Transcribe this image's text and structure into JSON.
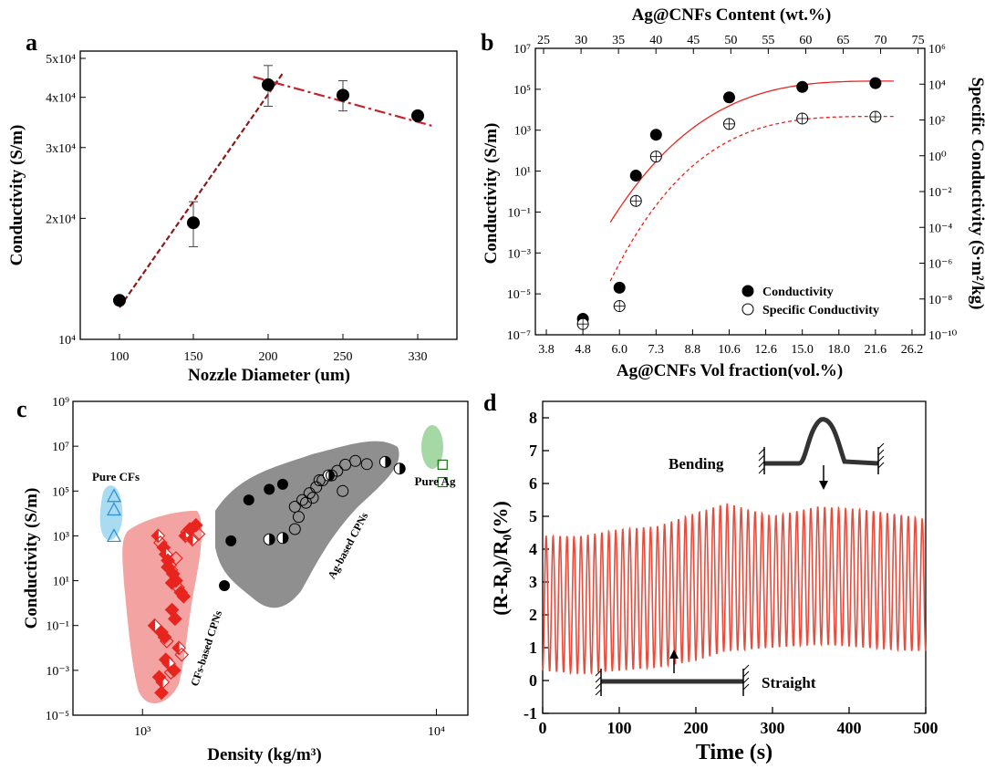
{
  "colors": {
    "red": "#e8241f",
    "darkred": "#8b1a1a",
    "dashred": "#c0272d",
    "grey": "#8f8f8f",
    "pink": "#f4a3a3",
    "blue": "#a9dbf2",
    "green": "#a6d8a6",
    "bending_line": "#e84c3d",
    "black": "#000000"
  },
  "chart_data": [
    {
      "panel": "a",
      "type": "scatter",
      "xlabel": "Nozzle Diameter (um)",
      "ylabel": "Conductivity (S/m)",
      "categories": [
        "100",
        "150",
        "200",
        "250",
        "330"
      ],
      "values": [
        12500,
        19500,
        43000,
        40500,
        36000
      ],
      "error": [
        0,
        2500,
        5000,
        3500,
        0
      ],
      "y_ticks": [
        "10⁴",
        "2x10⁴",
        "3x10⁴",
        "4x10⁴",
        "5x10⁴"
      ],
      "y_scale": "log",
      "ylim": [
        10000,
        50000
      ],
      "fit_lines": [
        {
          "style": "dashed",
          "points": [
            [
              100,
              12000
            ],
            [
              210,
              46000
            ]
          ]
        },
        {
          "style": "dash-dot",
          "points": [
            [
              190,
              45000
            ],
            [
              345,
              34000
            ]
          ]
        }
      ]
    },
    {
      "panel": "b",
      "type": "scatter",
      "xlabel": "Ag@CNFs Vol fraction(vol.%)",
      "x2label": "Ag@CNFs Content (wt.%)",
      "ylabel": "Conductivity (S/m)",
      "y2label": "Specific Conductivity (S·m²/kg)",
      "x_ticks": [
        "3.8",
        "4.8",
        "6.0",
        "7.3",
        "8.8",
        "10.6",
        "12.6",
        "15.0",
        "18.0",
        "21.6",
        "26.2"
      ],
      "x2_ticks": [
        "25",
        "30",
        "35",
        "40",
        "45",
        "50",
        "55",
        "60",
        "65",
        "70",
        "75"
      ],
      "y_ticks": [
        "10⁻⁷",
        "10⁻⁵",
        "10⁻³",
        "10⁻¹",
        "10¹",
        "10³",
        "10⁵",
        "10⁷"
      ],
      "y2_ticks": [
        "10⁻¹⁰",
        "10⁻⁸",
        "10⁻⁶",
        "10⁻⁴",
        "10⁻²",
        "10⁰",
        "10²",
        "10⁴",
        "10⁶"
      ],
      "y_scale": "log",
      "ylim": [
        1e-07,
        10000000.0
      ],
      "y2lim": [
        1e-10,
        1000000.0
      ],
      "legend_position": "bottom-right",
      "series": [
        {
          "name": "Conductivity",
          "marker": "filled-circle",
          "x": [
            4.8,
            6.0,
            6.5,
            7.3,
            10.6,
            15.0,
            21.6
          ],
          "y": [
            6e-07,
            2e-05,
            6,
            600,
            40000,
            130000,
            200000
          ]
        },
        {
          "name": "Specific Conductivity",
          "marker": "open-circle-cross",
          "x": [
            4.8,
            6.0,
            6.5,
            7.3,
            10.6,
            15.0,
            21.6
          ],
          "y": [
            4e-10,
            4e-09,
            0.003,
            0.9,
            60,
            120,
            150
          ]
        }
      ]
    },
    {
      "panel": "c",
      "type": "scatter",
      "xlabel": "Density (kg/m³)",
      "ylabel": "Conductivity (S/m)",
      "x_ticks": [
        "10³",
        "10⁴"
      ],
      "y_ticks": [
        "10⁻⁵",
        "10⁻³",
        "10⁻¹",
        "10¹",
        "10³",
        "10⁵",
        "10⁷",
        "10⁹"
      ],
      "x_scale": "log",
      "y_scale": "log",
      "regions": [
        {
          "label": "Pure CFs",
          "color": "blue"
        },
        {
          "label": "CFs-based CPNs",
          "color": "pink"
        },
        {
          "label": "Ag-based CPNs",
          "color": "grey"
        },
        {
          "label": "Pure Ag",
          "color": "green"
        }
      ],
      "series": [
        {
          "name": "Pure CFs",
          "marker": "open-triangle",
          "x": [
            800,
            800,
            800
          ],
          "y": [
            60000,
            15000,
            1000
          ]
        },
        {
          "name": "CFs-based CPNs",
          "marker": "red-diamond",
          "x": [
            1130,
            1150,
            1180,
            1200,
            1220,
            1240,
            1250,
            1270,
            1300,
            1320,
            1350,
            1380,
            1400,
            1420,
            1450,
            1480,
            1520,
            1550,
            1100,
            1160,
            1190,
            1210,
            1260,
            1290,
            1330,
            1360,
            1200,
            1230,
            1280,
            1250,
            1170,
            1140,
            1160,
            1300,
            1220,
            1260
          ],
          "y": [
            1000,
            500,
            300,
            150,
            80,
            50,
            30,
            20,
            10,
            5,
            3,
            2,
            1000,
            1500,
            2000,
            700,
            3000,
            1200,
            0.1,
            0.05,
            0.03,
            0.02,
            0.5,
            0.2,
            0.01,
            0.005,
            0.003,
            0.002,
            0.001,
            0.0008,
            0.0003,
            0.0005,
            0.0001,
            100,
            40,
            8
          ]
        },
        {
          "name": "Ag-based CPNs",
          "marker": "mixed-circle",
          "x": [
            1900,
            2000,
            2300,
            2700,
            3000,
            2700,
            3000,
            3300,
            3500,
            3700,
            3900,
            4100,
            4300,
            4600,
            4900,
            5300,
            5800,
            6700,
            7500,
            3400,
            3600,
            3800,
            4000,
            4400,
            4800,
            3300
          ],
          "y": [
            6,
            600,
            40000,
            120000,
            200000,
            700,
            800,
            20000,
            40000,
            80000,
            150000,
            300000,
            500000,
            800000,
            1500000,
            2200000,
            1600000,
            2000000,
            1000000,
            7000,
            30000,
            50000,
            300000,
            500000,
            100000,
            2000
          ]
        },
        {
          "name": "Pure Ag",
          "marker": "open-square",
          "x": [
            10500,
            10500
          ],
          "y": [
            1500000,
            250000
          ]
        }
      ]
    },
    {
      "panel": "d",
      "type": "line",
      "xlabel": "Time (s)",
      "ylabel": "(R-R₀)/R₀(%)",
      "x_ticks": [
        "0",
        "100",
        "200",
        "300",
        "400",
        "500"
      ],
      "y_ticks": [
        "-1",
        "0",
        "1",
        "2",
        "3",
        "4",
        "5",
        "6",
        "7",
        "8"
      ],
      "xlim": [
        0,
        500
      ],
      "ylim": [
        -1,
        8.5
      ],
      "cycles": 55,
      "envelope": {
        "t": [
          0,
          50,
          100,
          150,
          200,
          240,
          300,
          360,
          420,
          480,
          500
        ],
        "max": [
          4.4,
          4.4,
          4.6,
          4.7,
          5.1,
          5.4,
          5.0,
          5.3,
          5.2,
          5.0,
          4.9
        ],
        "min": [
          0.3,
          0.2,
          0.3,
          0.4,
          0.6,
          0.9,
          1.0,
          1.1,
          1.0,
          0.9,
          0.9
        ]
      },
      "annotations": [
        {
          "label": "Bending",
          "t": 365
        },
        {
          "label": "Straight",
          "t": 170
        }
      ]
    }
  ]
}
